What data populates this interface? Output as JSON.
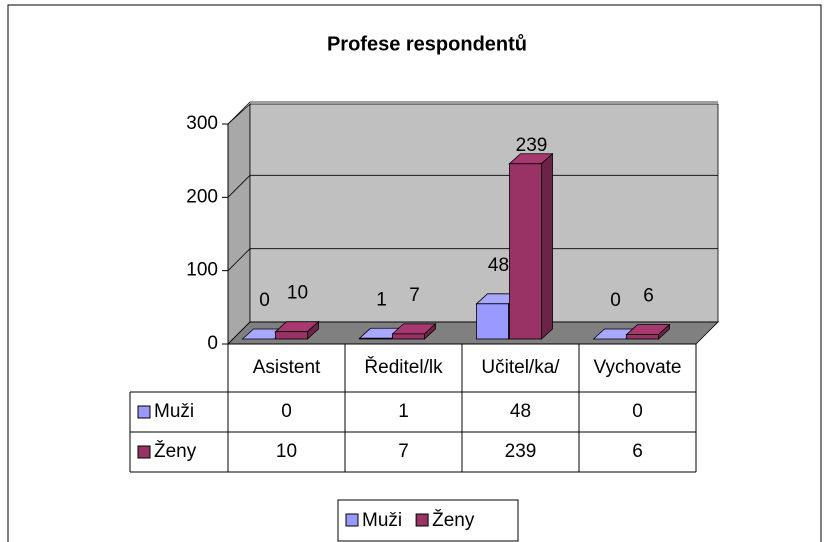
{
  "chart_data": {
    "type": "bar3d",
    "title": "Profese respondentů",
    "categories": [
      "Asistent",
      "Ředitel/lk",
      "Učitel/ka/",
      "Vychovate"
    ],
    "series": [
      {
        "name": "Muži",
        "color": "#9999ff",
        "values": [
          0,
          1,
          48,
          0
        ]
      },
      {
        "name": "Ženy",
        "color": "#993366",
        "values": [
          10,
          7,
          239,
          6
        ]
      }
    ],
    "ylim": [
      0,
      300
    ],
    "yticks": [
      0,
      100,
      200,
      300
    ],
    "grid": true,
    "legend": "bottom",
    "data_table": true
  }
}
